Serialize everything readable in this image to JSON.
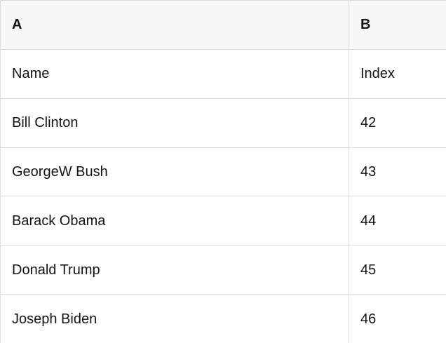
{
  "table": {
    "column_headers": [
      "A",
      "B"
    ],
    "rows": [
      [
        "Name",
        "Index"
      ],
      [
        "Bill Clinton",
        "42"
      ],
      [
        "GeorgeW Bush",
        "43"
      ],
      [
        "Barack Obama",
        "44"
      ],
      [
        "Donald Trump",
        "45"
      ],
      [
        "Joseph Biden",
        "46"
      ]
    ]
  },
  "colors": {
    "background": "#ffffff",
    "header_background": "#f7f7f7",
    "grid_border": "#dcdcdc",
    "text": "#141414"
  }
}
